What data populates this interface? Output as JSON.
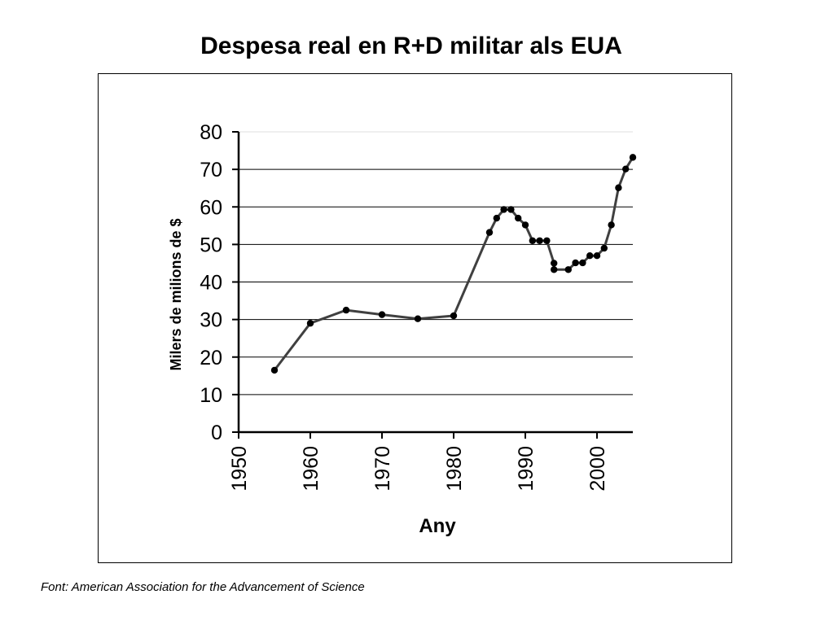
{
  "slide": {
    "title": "Despesa real en R+D militar als EUA",
    "source": "Font: American Association for the Advancement of Science"
  },
  "colors": {
    "line": "#404040",
    "marker": "#000000",
    "grid": "#000000"
  },
  "chart_data": {
    "type": "line",
    "title": "Despesa real en R+D militar als EUA",
    "xlabel": "Any",
    "ylabel": "Milers de milions de $",
    "xlim": [
      1950,
      2005
    ],
    "ylim": [
      0,
      80
    ],
    "x_ticks": [
      1950,
      1960,
      1970,
      1980,
      1990,
      2000
    ],
    "y_ticks": [
      0,
      10,
      20,
      30,
      40,
      50,
      60,
      70,
      80
    ],
    "grid": true,
    "legend": "none",
    "series": [
      {
        "x": [
          1955,
          1960,
          1965,
          1970,
          1975,
          1980,
          1985,
          1986,
          1987,
          1988,
          1989,
          1990,
          1991,
          1992,
          1993,
          1994,
          1994,
          1996,
          1997,
          1998,
          1999,
          2000,
          2001,
          2002,
          2003,
          2004,
          2005
        ],
        "y": [
          16.5,
          29,
          32.5,
          31.3,
          30.2,
          31,
          53.2,
          57,
          59.3,
          59.3,
          57,
          55.2,
          51,
          51,
          51,
          45,
          43.3,
          43.3,
          45.1,
          45.1,
          47,
          47,
          49,
          55.2,
          65.1,
          70.1,
          73.2
        ]
      }
    ]
  }
}
